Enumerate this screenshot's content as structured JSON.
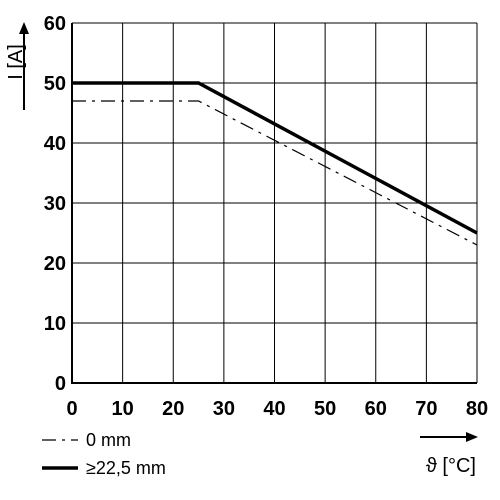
{
  "chart_data": {
    "type": "line",
    "xlabel": "ϑ [°C]",
    "ylabel": "I [A]",
    "xlim": [
      0,
      80
    ],
    "ylim": [
      0,
      60
    ],
    "x_ticks": [
      0,
      10,
      20,
      30,
      40,
      50,
      60,
      70,
      80
    ],
    "y_ticks": [
      0,
      10,
      20,
      30,
      40,
      50,
      60
    ],
    "grid": true,
    "legend_position": "bottom-left",
    "series": [
      {
        "name": "0 mm",
        "style": "dash-dot",
        "color": "#000000",
        "x": [
          0,
          25,
          80
        ],
        "y": [
          47,
          47,
          23
        ]
      },
      {
        "name": "≥22,5 mm",
        "style": "solid-thick",
        "color": "#000000",
        "x": [
          0,
          25,
          80
        ],
        "y": [
          50,
          50,
          25
        ]
      }
    ]
  }
}
